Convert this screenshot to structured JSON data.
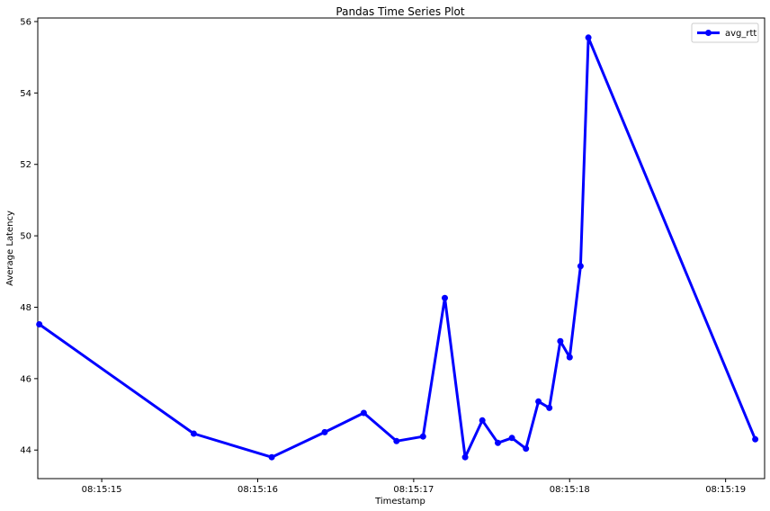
{
  "chart_data": {
    "type": "line",
    "title": "Pandas Time Series Plot",
    "xlabel": "Timestamp",
    "ylabel": "Average Latency",
    "x_axis_type": "time",
    "xlim": [
      "08:15:14.59",
      "08:15:19.25"
    ],
    "ylim": [
      43.2,
      56.1
    ],
    "x_ticks": [
      "08:15:15",
      "08:15:16",
      "08:15:17",
      "08:15:18",
      "08:15:19"
    ],
    "y_ticks": [
      44,
      46,
      48,
      50,
      52,
      54,
      56
    ],
    "grid": false,
    "legend": {
      "position": "top-right",
      "entries": [
        "avg_rtt"
      ]
    },
    "series": [
      {
        "name": "avg_rtt",
        "color": "#0000ff",
        "marker": "circle",
        "x": [
          "08:15:14.60",
          "08:15:15.59",
          "08:15:16.09",
          "08:15:16.43",
          "08:15:16.68",
          "08:15:16.89",
          "08:15:17.06",
          "08:15:17.20",
          "08:15:17.33",
          "08:15:17.44",
          "08:15:17.54",
          "08:15:17.63",
          "08:15:17.72",
          "08:15:17.80",
          "08:15:17.87",
          "08:15:17.94",
          "08:15:18.00",
          "08:15:18.07",
          "08:15:18.12",
          "08:15:19.19"
        ],
        "values": [
          47.52,
          44.46,
          43.8,
          44.5,
          45.04,
          44.25,
          44.38,
          48.26,
          43.8,
          44.83,
          44.2,
          44.34,
          44.04,
          45.36,
          45.18,
          47.05,
          46.6,
          49.15,
          55.55,
          44.3
        ]
      }
    ]
  }
}
